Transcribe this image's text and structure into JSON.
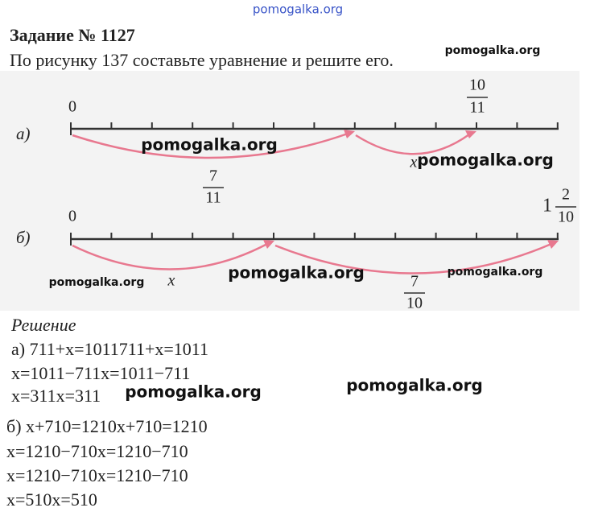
{
  "header": {
    "site": "pomogalka.org",
    "title": "Задание № 1127",
    "task": "По рисунку 137 составьте уравнение и решите его."
  },
  "figure": {
    "a": {
      "label": "а)",
      "start": "0",
      "end_num": "10",
      "end_den": "11",
      "arc1_num": "7",
      "arc1_den": "11",
      "arc2": "x"
    },
    "b": {
      "label": "б)",
      "start": "0",
      "end_whole": "1",
      "end_num": "2",
      "end_den": "10",
      "arc1": "x",
      "arc2_num": "7",
      "arc2_den": "10"
    }
  },
  "solution": {
    "heading": "Решение",
    "lines": [
      "а) 711+x=1011711+x=1011",
      "x=1011−711x=1011−711",
      "x=311x=311",
      "б) x+710=1210x+710=1210",
      "x=1210−710x=1210−710",
      "x=1210−710x=1210−710",
      "x=510x=510"
    ]
  },
  "watermarks": [
    "pomogalka.org",
    "pomogalka.org",
    "pomogalka.org",
    "pomogalka.org",
    "pomogalka.org",
    "pomogalka.org",
    "pomogalka.org",
    "pomogalka.org"
  ]
}
